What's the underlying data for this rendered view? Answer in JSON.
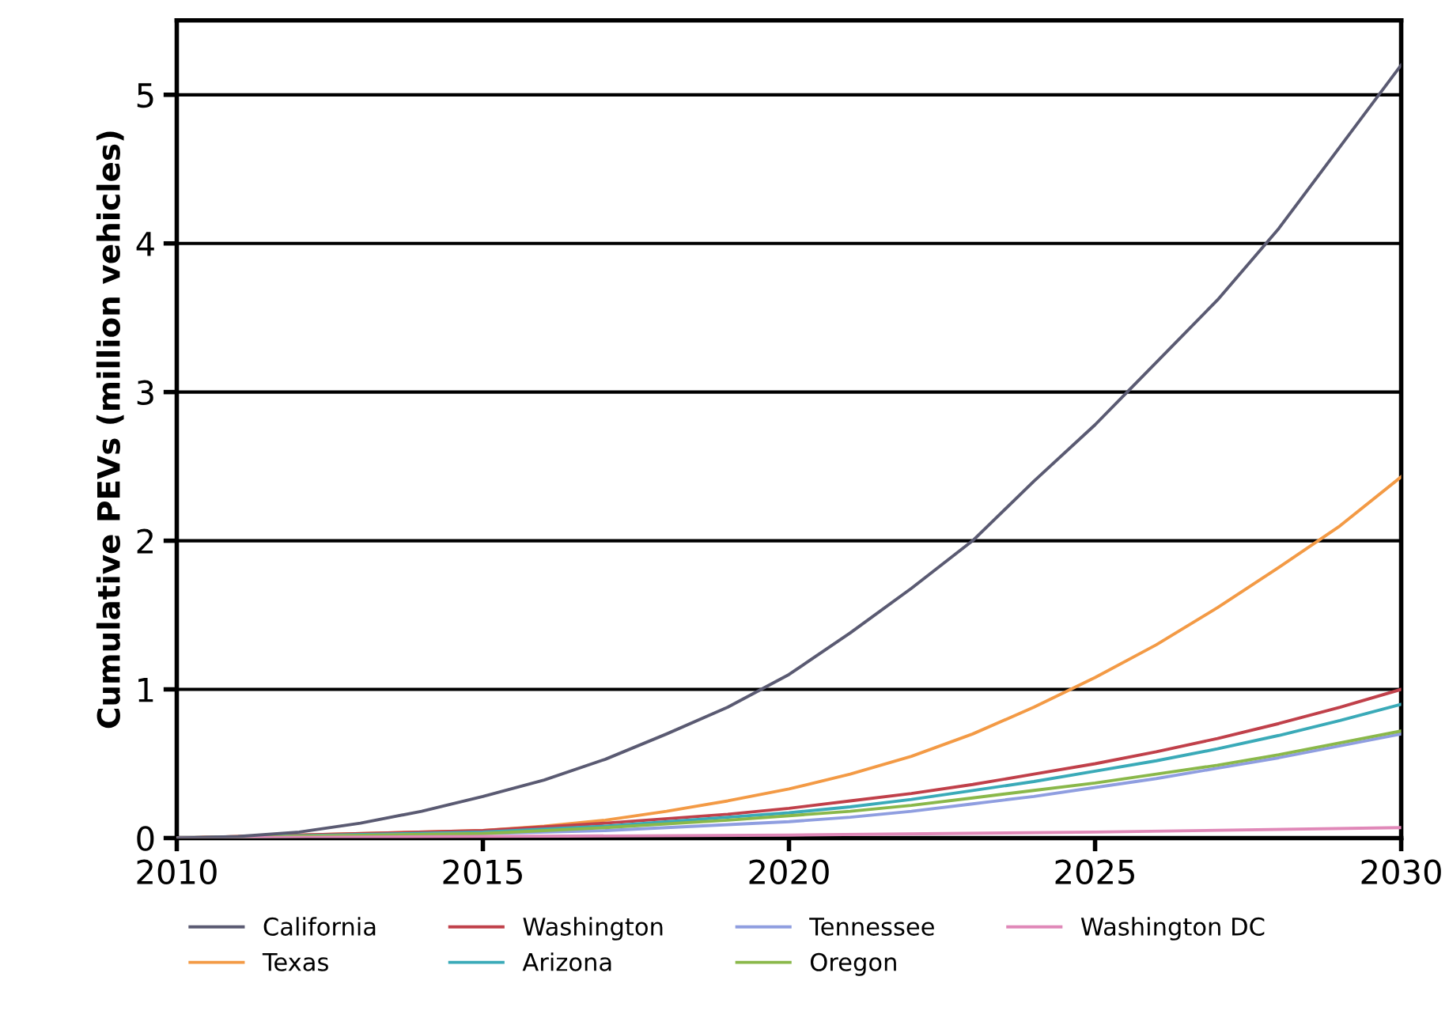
{
  "chart_data": {
    "type": "line",
    "ylabel": "Cumulative PEVs (million vehicles)",
    "xlim": [
      2010,
      2030
    ],
    "xticks": [
      2010,
      2015,
      2020,
      2025,
      2030
    ],
    "ylim": [
      0,
      5.5
    ],
    "yticks": [
      0,
      1,
      2,
      3,
      4,
      5
    ],
    "grid": "y",
    "legend": "bottom",
    "marker": "none",
    "line_style": "solid",
    "x": [
      2010,
      2011,
      2012,
      2013,
      2014,
      2015,
      2016,
      2017,
      2018,
      2019,
      2020,
      2021,
      2022,
      2023,
      2024,
      2025,
      2026,
      2027,
      2028,
      2029,
      2030
    ],
    "series": [
      {
        "name": "California",
        "color": "#5a5a72",
        "values": [
          0,
          0.01,
          0.04,
          0.1,
          0.18,
          0.28,
          0.39,
          0.53,
          0.7,
          0.88,
          1.1,
          1.38,
          1.68,
          2.0,
          2.4,
          2.78,
          3.2,
          3.62,
          4.1,
          4.65,
          5.2
        ]
      },
      {
        "name": "Texas",
        "color": "#f39a45",
        "x": [
          2010,
          2015,
          2016,
          2017,
          2018,
          2019,
          2020,
          2021,
          2022,
          2023,
          2024,
          2025,
          2026,
          2027,
          2028,
          2029,
          2030
        ],
        "values": [
          0,
          0.05,
          0.08,
          0.12,
          0.18,
          0.25,
          0.33,
          0.43,
          0.55,
          0.7,
          0.88,
          1.08,
          1.3,
          1.55,
          1.82,
          2.1,
          2.43
        ]
      },
      {
        "name": "Washington",
        "color": "#c0404a",
        "x": [
          2010,
          2015,
          2017,
          2019,
          2020,
          2021,
          2022,
          2023,
          2024,
          2025,
          2026,
          2027,
          2028,
          2029,
          2030
        ],
        "values": [
          0,
          0.05,
          0.1,
          0.16,
          0.2,
          0.25,
          0.3,
          0.36,
          0.43,
          0.5,
          0.58,
          0.67,
          0.77,
          0.88,
          1.0
        ]
      },
      {
        "name": "Arizona",
        "color": "#3aaab8",
        "x": [
          2010,
          2015,
          2017,
          2019,
          2020,
          2021,
          2022,
          2023,
          2024,
          2025,
          2026,
          2027,
          2028,
          2029,
          2030
        ],
        "values": [
          0,
          0.04,
          0.08,
          0.14,
          0.17,
          0.21,
          0.26,
          0.32,
          0.38,
          0.45,
          0.52,
          0.6,
          0.69,
          0.79,
          0.9
        ]
      },
      {
        "name": "Tennessee",
        "color": "#8f9ee0",
        "x": [
          2010,
          2015,
          2017,
          2019,
          2020,
          2021,
          2022,
          2023,
          2024,
          2025,
          2026,
          2027,
          2028,
          2029,
          2030
        ],
        "values": [
          0,
          0.03,
          0.05,
          0.09,
          0.11,
          0.14,
          0.18,
          0.23,
          0.28,
          0.34,
          0.4,
          0.47,
          0.54,
          0.62,
          0.7
        ]
      },
      {
        "name": "Oregon",
        "color": "#8ab84a",
        "x": [
          2010,
          2015,
          2017,
          2019,
          2020,
          2021,
          2022,
          2023,
          2024,
          2025,
          2026,
          2027,
          2028,
          2029,
          2030
        ],
        "values": [
          0,
          0.03,
          0.07,
          0.12,
          0.15,
          0.18,
          0.22,
          0.27,
          0.32,
          0.37,
          0.43,
          0.49,
          0.56,
          0.64,
          0.72
        ]
      },
      {
        "name": "Washington DC",
        "color": "#e088b8",
        "x": [
          2010,
          2015,
          2020,
          2025,
          2030
        ],
        "values": [
          0,
          0.01,
          0.02,
          0.04,
          0.07
        ]
      }
    ]
  }
}
